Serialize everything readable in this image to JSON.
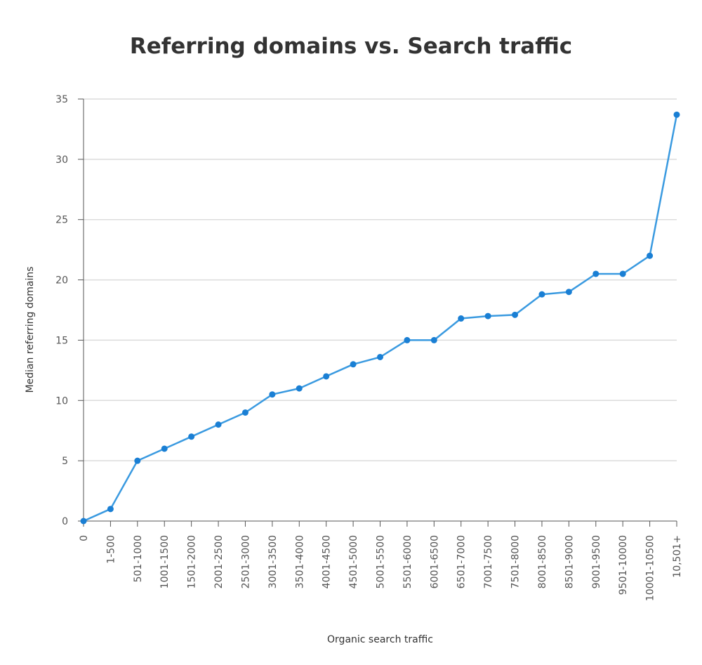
{
  "chart_data": {
    "type": "line",
    "title": "Referring domains vs. Search traffic",
    "xlabel": "Organic search traffic",
    "ylabel": "Median referring domains",
    "ylim": [
      0,
      35
    ],
    "yticks": [
      0,
      5,
      10,
      15,
      20,
      25,
      30,
      35
    ],
    "grid": true,
    "color": "#3a9ae0",
    "marker_color": "#1a7fd4",
    "categories": [
      "0",
      "1-500",
      "501-1000",
      "1001-1500",
      "1501-2000",
      "2001-2500",
      "2501-3000",
      "3001-3500",
      "3501-4000",
      "4001-4500",
      "4501-5000",
      "5001-5500",
      "5501-6000",
      "6001-6500",
      "6501-7000",
      "7001-7500",
      "7501-8000",
      "8001-8500",
      "8501-9000",
      "9001-9500",
      "9501-10000",
      "10001-10500",
      "10,501+"
    ],
    "values": [
      0,
      1,
      5,
      6,
      7,
      8,
      9,
      10.5,
      11,
      12,
      13,
      13.6,
      15,
      15,
      16.8,
      17,
      17.1,
      18.8,
      19,
      20.5,
      20.5,
      22,
      33.7
    ]
  }
}
